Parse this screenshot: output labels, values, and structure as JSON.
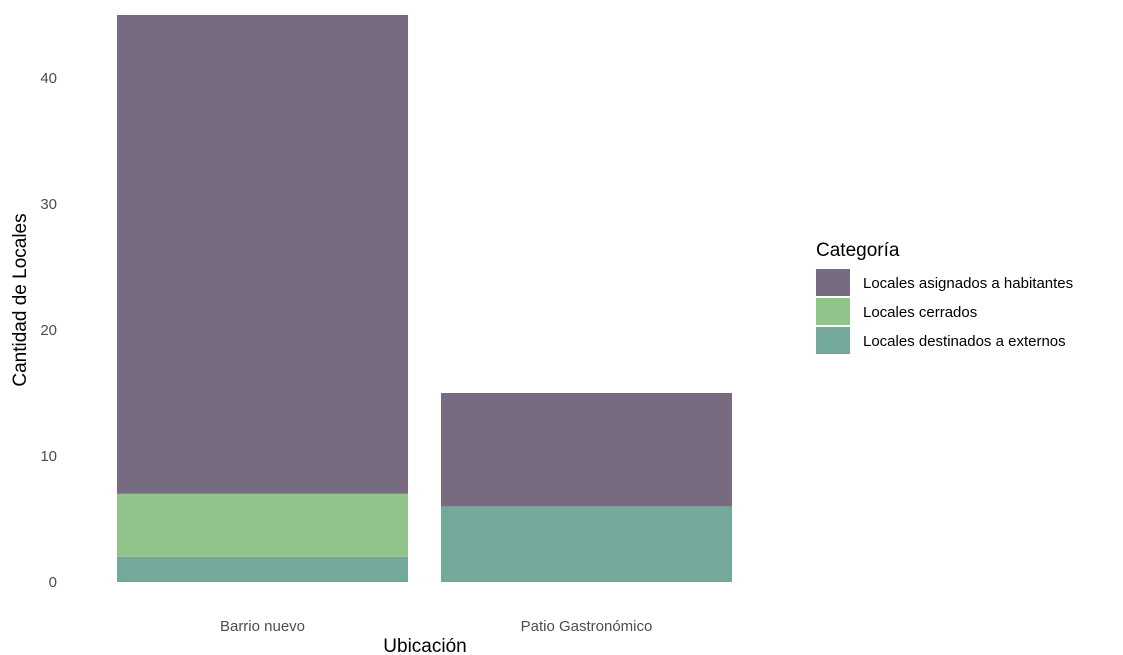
{
  "chart_data": {
    "type": "bar",
    "stacked": true,
    "categories": [
      "Barrio nuevo",
      "Patio Gastronómico"
    ],
    "series": [
      {
        "name": "Locales destinados a externos",
        "values": [
          2,
          6
        ],
        "color": "#73A99A"
      },
      {
        "name": "Locales cerrados",
        "values": [
          5,
          0
        ],
        "color": "#91C48A"
      },
      {
        "name": "Locales asignados a habitantes",
        "values": [
          38,
          9
        ],
        "color": "#786A80"
      }
    ],
    "legend_order": [
      "Locales asignados a habitantes",
      "Locales cerrados",
      "Locales destinados a externos"
    ],
    "xlabel": "Ubicación",
    "ylabel": "Cantidad de Locales",
    "ylim": [
      0,
      45
    ],
    "yticks": [
      0,
      10,
      20,
      30,
      40
    ],
    "grid": false,
    "legend_title": "Categoría",
    "legend_position": "right"
  }
}
